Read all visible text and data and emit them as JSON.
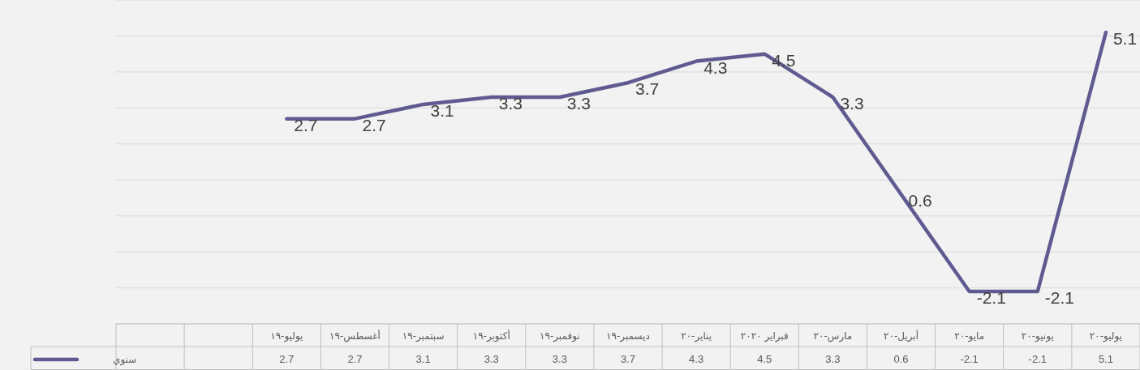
{
  "chart_data": {
    "type": "line",
    "categories": [
      null,
      null,
      "يوليو-١٩",
      "أغسطس-١٩",
      "سبتمبر-١٩",
      "أكتوبر-١٩",
      "نوفمبر-١٩",
      "ديسمبر-١٩",
      "يناير-٢٠",
      "فبراير ٢٠٢٠",
      "مارس-٢٠",
      "أبريل-٢٠",
      "مايو-٢٠",
      "يونيو-٢٠",
      "يوليو-٢٠"
    ],
    "series": [
      {
        "name": "سنوي",
        "color": "#5f5b91",
        "values": [
          null,
          null,
          2.7,
          2.7,
          3.1,
          3.3,
          3.3,
          3.7,
          4.3,
          4.5,
          3.3,
          0.6,
          -2.1,
          -2.1,
          5.1
        ],
        "value_labels": [
          null,
          null,
          "2.7",
          "2.7",
          "3.1",
          "3.3",
          "3.3",
          "3.7",
          "4.3",
          "4.5",
          "3.3",
          "0.6",
          "-2.1",
          "-2.1",
          "5.1"
        ]
      }
    ],
    "ylim": [
      -3,
      6
    ],
    "yticks": [
      {
        "value": -3,
        "label": null
      },
      {
        "value": -2,
        "label": null
      },
      {
        "value": -1,
        "label": null
      },
      {
        "value": 0,
        "label": null
      },
      {
        "value": 1,
        "label": null
      },
      {
        "value": 2,
        "label": null
      },
      {
        "value": 3,
        "label": null
      },
      {
        "value": 4,
        "label": null
      },
      {
        "value": 5,
        "label": null
      },
      {
        "value": 6,
        "label": null
      }
    ],
    "annotations": [
      "2.7",
      "2.7",
      "3.1",
      "3.3",
      "3.3",
      "3.7",
      "4.3",
      "4.5",
      "3.3",
      "0.6",
      "-2.1",
      "-2.1",
      "5.1"
    ],
    "grid": "y",
    "tick_labels": "x",
    "legend": "bottom left"
  }
}
